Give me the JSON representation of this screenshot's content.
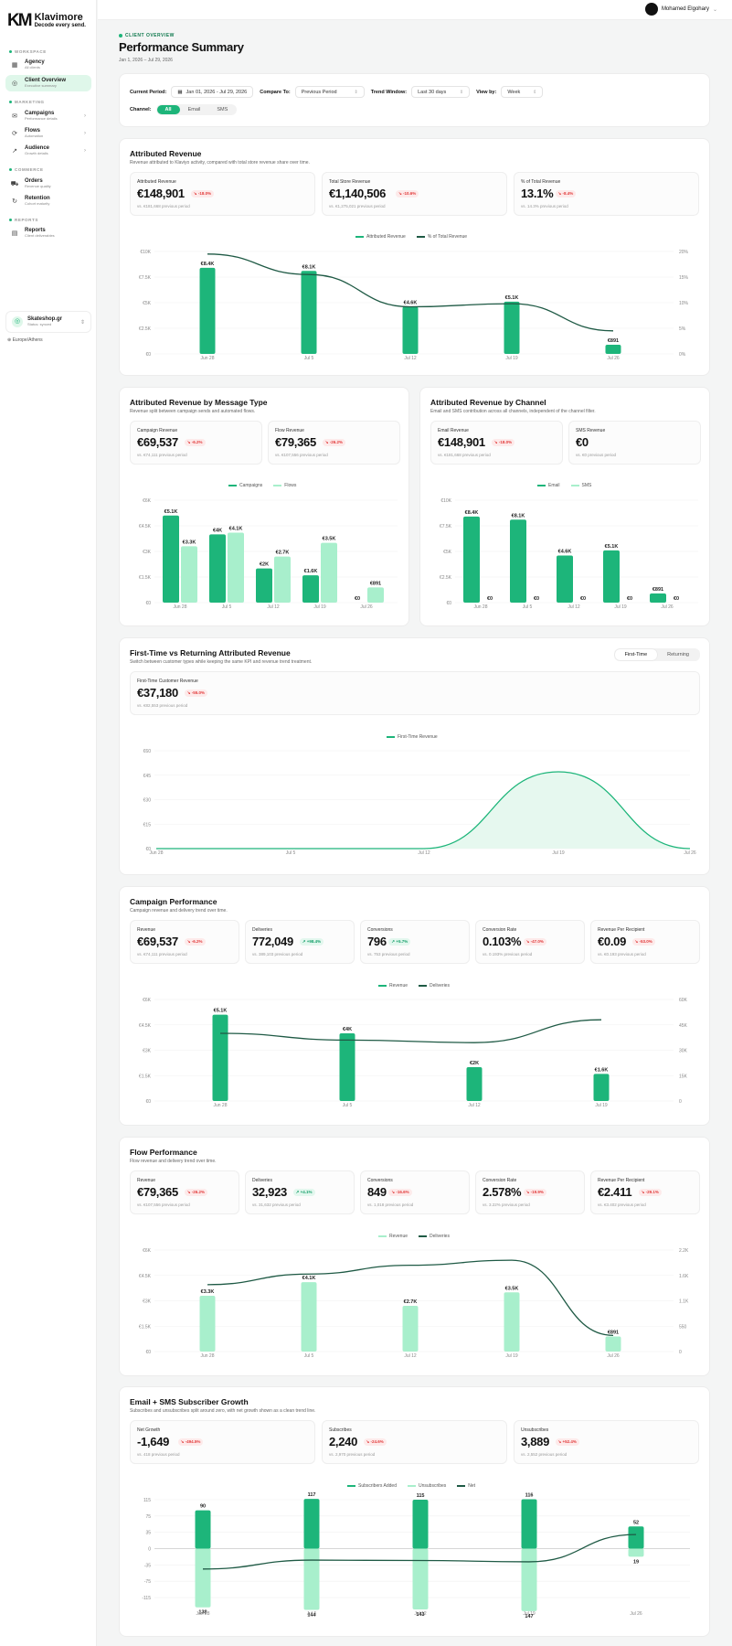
{
  "brand": {
    "name": "Klavimore",
    "tagline": "Decode every send."
  },
  "user": {
    "name": "Mohamed Elgohary"
  },
  "nav": {
    "workspace_section": "WORKSPACE",
    "marketing_section": "MARKETING",
    "commerce_section": "COMMERCE",
    "reports_section": "REPORTS",
    "items": [
      {
        "label": "Agency",
        "sub": "All clients"
      },
      {
        "label": "Client Overview",
        "sub": "Executive summary"
      },
      {
        "label": "Campaigns",
        "sub": "Performance details"
      },
      {
        "label": "Flows",
        "sub": "Automation"
      },
      {
        "label": "Audience",
        "sub": "Growth details"
      },
      {
        "label": "Orders",
        "sub": "Revenue quality"
      },
      {
        "label": "Retention",
        "sub": "Cohort maturity"
      },
      {
        "label": "Reports",
        "sub": "Client deliverables"
      }
    ]
  },
  "workspace": {
    "name": "Skateshop.gr",
    "status": "Status: synced"
  },
  "timezone": "Europe/Athens",
  "header": {
    "eyebrow": "CLIENT OVERVIEW",
    "title": "Performance Summary",
    "range": "Jan 1, 2026 – Jul 29, 2026"
  },
  "filters": {
    "current_period_label": "Current Period:",
    "current_period": "Jan 01, 2026 - Jul 29, 2026",
    "compare_label": "Compare To:",
    "compare": "Previous Period",
    "trend_label": "Trend Window:",
    "trend": "Last 30 days",
    "view_label": "View by:",
    "view": "Week",
    "channel_label": "Channel:",
    "channels": [
      "All",
      "Email",
      "SMS"
    ]
  },
  "colors": {
    "primary": "#1db57a",
    "light": "#a8efcc",
    "dark": "#1f5a45"
  },
  "sections": {
    "attributed": {
      "title": "Attributed Revenue",
      "sub": "Revenue attributed to Klaviyo activity, compared with total store revenue share over time.",
      "kpis": [
        {
          "label": "Attributed Revenue",
          "value": "€148,901",
          "delta": "-18.0%",
          "prev": "vs. €181,668 previous period"
        },
        {
          "label": "Total Store Revenue",
          "value": "€1,140,506",
          "delta": "-10.6%",
          "prev": "vs. €1,275,021 previous period"
        },
        {
          "label": "% of Total Revenue",
          "value": "13.1%",
          "delta": "-8.4%",
          "prev": "vs. 14.3% previous period"
        }
      ],
      "legend": [
        "Attributed Revenue",
        "% of Total Revenue"
      ]
    },
    "msgtype": {
      "title": "Attributed Revenue by Message Type",
      "sub": "Revenue split between campaign sends and automated flows.",
      "kpis": [
        {
          "label": "Campaign Revenue",
          "value": "€69,537",
          "delta": "-6.2%",
          "prev": "vs. €74,111 previous period"
        },
        {
          "label": "Flow Revenue",
          "value": "€79,365",
          "delta": "-26.2%",
          "prev": "vs. €107,556 previous period"
        }
      ],
      "legend": [
        "Campaigns",
        "Flows"
      ]
    },
    "channel": {
      "title": "Attributed Revenue by Channel",
      "sub": "Email and SMS contribution across all channels, independent of the channel filter.",
      "kpis": [
        {
          "label": "Email Revenue",
          "value": "€148,901",
          "delta": "-18.0%",
          "prev": "vs. €181,668 previous period"
        },
        {
          "label": "SMS Revenue",
          "value": "€0",
          "delta": "",
          "prev": "vs. €0 previous period"
        }
      ],
      "legend": [
        "Email",
        "SMS"
      ]
    },
    "firsttime": {
      "title": "First-Time vs Returning Attributed Revenue",
      "sub": "Switch between customer types while keeping the same KPI and revenue trend treatment.",
      "toggle": [
        "First-Time",
        "Returning"
      ],
      "kpis": [
        {
          "label": "First-Time Customer Revenue",
          "value": "€37,180",
          "delta": "-55.0%",
          "prev": "vs. €82,553 previous period"
        }
      ],
      "legend": [
        "First-Time Revenue"
      ]
    },
    "campaign": {
      "title": "Campaign Performance",
      "sub": "Campaign revenue and delivery trend over time.",
      "kpis": [
        {
          "label": "Revenue",
          "value": "€69,537",
          "delta": "-6.2%",
          "prev": "vs. €74,111 previous period",
          "pos": false
        },
        {
          "label": "Deliveries",
          "value": "772,049",
          "delta": "+98.4%",
          "prev": "vs. 389,103 previous period",
          "pos": true
        },
        {
          "label": "Conversions",
          "value": "796",
          "delta": "+5.7%",
          "prev": "vs. 753 previous period",
          "pos": true
        },
        {
          "label": "Conversion Rate",
          "value": "0.103%",
          "delta": "-47.0%",
          "prev": "vs. 0.193% previous period",
          "pos": false
        },
        {
          "label": "Revenue Per Recipient",
          "value": "€0.09",
          "delta": "-53.0%",
          "prev": "vs. €0.193 previous period",
          "pos": false
        }
      ],
      "legend": [
        "Revenue",
        "Deliveries"
      ]
    },
    "flow": {
      "title": "Flow Performance",
      "sub": "Flow revenue and delivery trend over time.",
      "kpis": [
        {
          "label": "Revenue",
          "value": "€79,365",
          "delta": "-26.2%",
          "prev": "vs. €107,556 previous period",
          "pos": false
        },
        {
          "label": "Deliveries",
          "value": "32,923",
          "delta": "+4.1%",
          "prev": "vs. 31,632 previous period",
          "pos": true
        },
        {
          "label": "Conversions",
          "value": "849",
          "delta": "-16.6%",
          "prev": "vs. 1,018 previous period",
          "pos": false
        },
        {
          "label": "Conversion Rate",
          "value": "2.578%",
          "delta": "-19.9%",
          "prev": "vs. 3.22% previous period",
          "pos": false
        },
        {
          "label": "Revenue Per Recipient",
          "value": "€2.411",
          "delta": "-29.1%",
          "prev": "vs. €3.402 previous period",
          "pos": false
        }
      ],
      "legend": [
        "Revenue",
        "Deliveries"
      ]
    },
    "subs": {
      "title": "Email + SMS Subscriber Growth",
      "sub": "Subscribes and unsubscribes split around zero, with net growth shown as a clean trend line.",
      "kpis": [
        {
          "label": "Net Growth",
          "value": "-1,649",
          "delta": "-494.5%",
          "prev": "vs. 418 previous period"
        },
        {
          "label": "Subscribes",
          "value": "2,240",
          "delta": "-24.6%",
          "prev": "vs. 2,970 previous period"
        },
        {
          "label": "Unsubscribes",
          "value": "3,889",
          "delta": "+52.4%",
          "prev": "vs. 2,552 previous period"
        }
      ],
      "legend": [
        "Subscribers Added",
        "Unsubscribes",
        "Net"
      ]
    }
  },
  "chart_data": [
    {
      "id": "attributed",
      "type": "bar+line",
      "categories": [
        "Jun 28",
        "Jul 5",
        "Jul 12",
        "Jul 19",
        "Jul 26"
      ],
      "bars": [
        8400,
        8100,
        4600,
        5100,
        891
      ],
      "bar_labels": [
        "€8.4K",
        "€8.1K",
        "€4.6K",
        "€5.1K",
        "€891"
      ],
      "line": [
        19.5,
        15.5,
        9.2,
        9.8,
        4.5
      ],
      "y_ticks": [
        "€0",
        "€2.5K",
        "€5K",
        "€7.5K",
        "€10K"
      ],
      "ylim": [
        0,
        10000
      ],
      "y2_ticks": [
        "0%",
        "5%",
        "10%",
        "15%",
        "20%"
      ],
      "y2lim": [
        0,
        20
      ]
    },
    {
      "id": "msgtype",
      "type": "grouped-bar",
      "categories": [
        "Jun 28",
        "Jul 5",
        "Jul 12",
        "Jul 19",
        "Jul 26"
      ],
      "series": [
        {
          "name": "Campaigns",
          "values": [
            5100,
            4000,
            2000,
            1600,
            0
          ],
          "labels": [
            "€5.1K",
            "€4K",
            "€2K",
            "€1.6K",
            "€0"
          ]
        },
        {
          "name": "Flows",
          "values": [
            3300,
            4100,
            2700,
            3500,
            891
          ],
          "labels": [
            "€3.3K",
            "€4.1K",
            "€2.7K",
            "€3.5K",
            "€891"
          ]
        }
      ],
      "y_ticks": [
        "€0",
        "€1.5K",
        "€3K",
        "€4.5K",
        "€6K"
      ],
      "ylim": [
        0,
        6000
      ]
    },
    {
      "id": "channel",
      "type": "grouped-bar",
      "categories": [
        "Jun 28",
        "Jul 5",
        "Jul 12",
        "Jul 19",
        "Jul 26"
      ],
      "series": [
        {
          "name": "Email",
          "values": [
            8400,
            8100,
            4600,
            5100,
            891
          ],
          "labels": [
            "€8.4K",
            "€8.1K",
            "€4.6K",
            "€5.1K",
            "€891"
          ]
        },
        {
          "name": "SMS",
          "values": [
            0,
            0,
            0,
            0,
            0
          ],
          "labels": [
            "€0",
            "€0",
            "€0",
            "€0",
            "€0"
          ]
        }
      ],
      "y_ticks": [
        "€0",
        "€2.5K",
        "€5K",
        "€7.5K",
        "€10K"
      ],
      "ylim": [
        0,
        10000
      ]
    },
    {
      "id": "firsttime",
      "type": "area",
      "categories": [
        "Jun 28",
        "Jul 5",
        "Jul 12",
        "Jul 19",
        "Jul 26"
      ],
      "values": [
        0,
        0,
        0,
        37180,
        0
      ],
      "y_ticks": [
        "€0",
        "€15",
        "€30",
        "€45",
        "€60"
      ]
    },
    {
      "id": "campaign",
      "type": "bar+line",
      "categories": [
        "Jun 28",
        "Jul 5",
        "Jul 12",
        "Jul 19"
      ],
      "bars": [
        5100,
        4000,
        2000,
        1600
      ],
      "bar_labels": [
        "€5.1K",
        "€4K",
        "€2K",
        "€1.6K"
      ],
      "line": [
        40000,
        36000,
        34500,
        48000
      ],
      "y_ticks": [
        "€0",
        "€1.5K",
        "€3K",
        "€4.5K",
        "€6K"
      ],
      "ylim": [
        0,
        6000
      ],
      "y2_ticks": [
        "0",
        "15K",
        "30K",
        "45K",
        "60K"
      ],
      "y2lim": [
        0,
        60000
      ]
    },
    {
      "id": "flow",
      "type": "bar+line",
      "categories": [
        "Jun 28",
        "Jul 5",
        "Jul 12",
        "Jul 19",
        "Jul 26"
      ],
      "bars": [
        3300,
        4100,
        2700,
        3500,
        891
      ],
      "bar_labels": [
        "€3.3K",
        "€4.1K",
        "€2.7K",
        "€3.5K",
        "€891"
      ],
      "line": [
        1450,
        1680,
        1870,
        1980,
        350
      ],
      "y_ticks": [
        "€0",
        "€1.5K",
        "€3K",
        "€4.5K",
        "€6K"
      ],
      "ylim": [
        0,
        6000
      ],
      "y2_ticks": [
        "0",
        "550",
        "1.1K",
        "1.6K",
        "2.2K"
      ],
      "y2lim": [
        0,
        2200
      ]
    },
    {
      "id": "subs",
      "type": "diverging-bar+line",
      "categories": [
        "Jun 28",
        "Jul 5",
        "Jul 12",
        "Jul 19",
        "Jul 26"
      ],
      "added": [
        90,
        117,
        115,
        116,
        52
      ],
      "unsubscribed": [
        138,
        144,
        143,
        147,
        19
      ],
      "net": [
        -48,
        -27,
        -28,
        -31,
        33
      ],
      "y_ticks": [
        "-115",
        "-75",
        "-35",
        "0",
        "35",
        "75",
        "115"
      ],
      "ylim": [
        -115,
        115
      ]
    }
  ]
}
